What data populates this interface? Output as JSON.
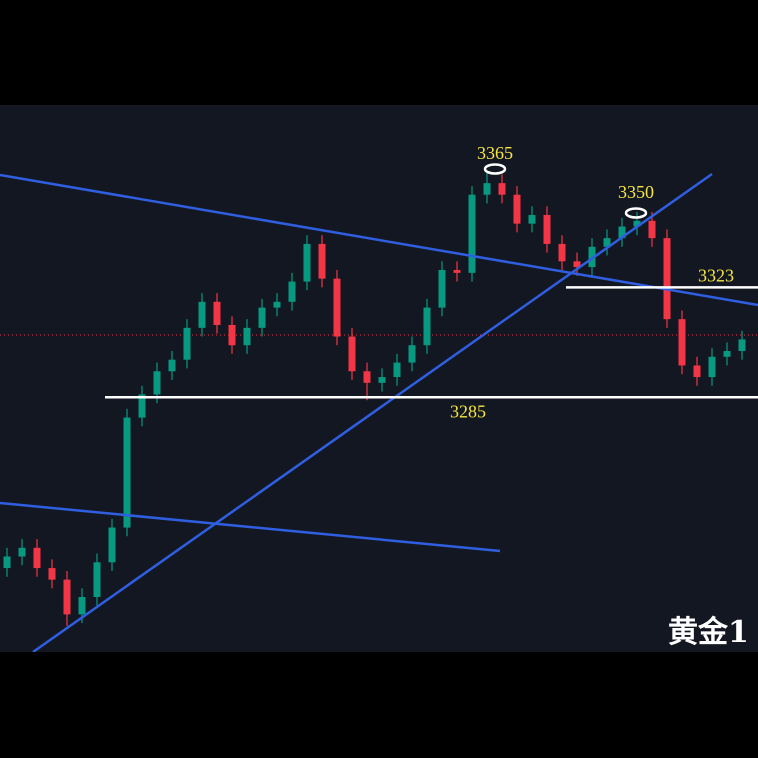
{
  "chart_data": {
    "type": "candlestick",
    "annotations": [
      3365,
      3350,
      3323,
      3285
    ],
    "corner_label": "黄金1",
    "ylim": [
      3197,
      3386
    ],
    "up_color": "#089981",
    "down_color": "#f23645",
    "open": [
      3226,
      3230,
      3233,
      3226,
      3222,
      3210,
      3216,
      3228,
      3240,
      3278,
      3286,
      3294,
      3298,
      3309,
      3318,
      3310,
      3303,
      3309,
      3316,
      3318,
      3325,
      3338,
      3326,
      3306,
      3294,
      3290,
      3292,
      3297,
      3303,
      3316,
      3329,
      3328,
      3355,
      3359,
      3355,
      3345,
      3348,
      3338,
      3332,
      3330,
      3337,
      3340,
      3344,
      3346,
      3340,
      3312,
      3296,
      3292,
      3299,
      3301
    ],
    "high": [
      3233,
      3236,
      3236,
      3229,
      3225,
      3219,
      3231,
      3243,
      3281,
      3289,
      3297,
      3301,
      3312,
      3321,
      3321,
      3313,
      3312,
      3319,
      3321,
      3328,
      3341,
      3341,
      3329,
      3309,
      3297,
      3295,
      3300,
      3306,
      3319,
      3332,
      3332,
      3358,
      3363,
      3362,
      3358,
      3351,
      3351,
      3341,
      3335,
      3340,
      3343,
      3347,
      3349,
      3349,
      3343,
      3315,
      3299,
      3302,
      3304,
      3308
    ],
    "low": [
      3223,
      3227,
      3223,
      3219,
      3206,
      3207,
      3213,
      3225,
      3237,
      3275,
      3283,
      3291,
      3295,
      3306,
      3307,
      3300,
      3300,
      3306,
      3313,
      3315,
      3322,
      3323,
      3303,
      3291,
      3284,
      3287,
      3289,
      3294,
      3300,
      3313,
      3325,
      3325,
      3352,
      3352,
      3342,
      3342,
      3335,
      3329,
      3327,
      3327,
      3334,
      3337,
      3341,
      3337,
      3309,
      3293,
      3289,
      3289,
      3296,
      3298
    ],
    "close": [
      3230,
      3233,
      3226,
      3222,
      3210,
      3216,
      3228,
      3240,
      3278,
      3286,
      3294,
      3298,
      3309,
      3318,
      3310,
      3303,
      3309,
      3316,
      3318,
      3325,
      3338,
      3326,
      3306,
      3294,
      3290,
      3292,
      3297,
      3303,
      3316,
      3329,
      3328,
      3355,
      3359,
      3355,
      3345,
      3348,
      3338,
      3332,
      3330,
      3337,
      3340,
      3344,
      3346,
      3340,
      3312,
      3296,
      3292,
      3299,
      3301,
      3305
    ]
  }
}
